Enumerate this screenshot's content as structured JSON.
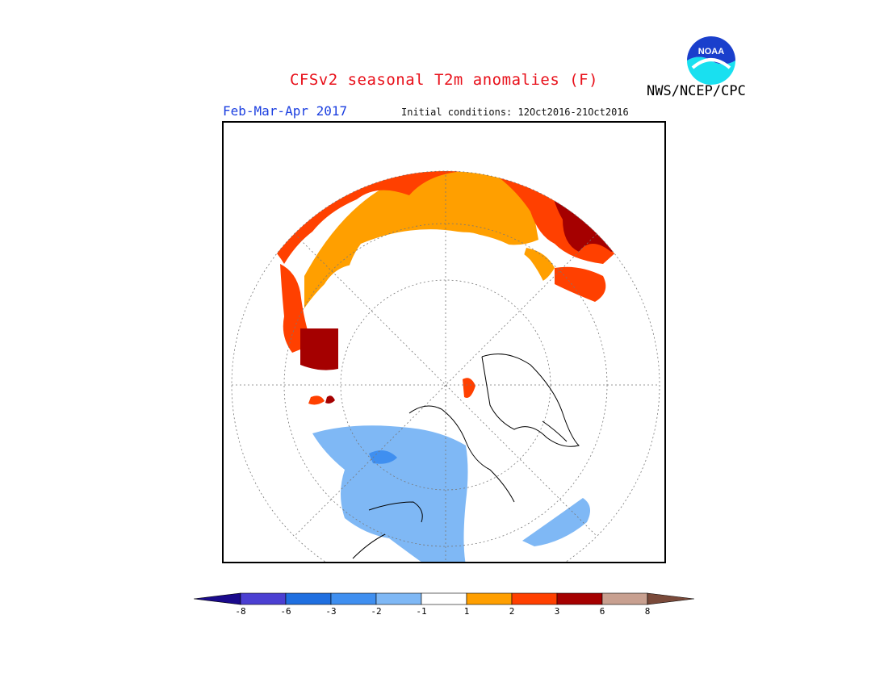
{
  "header": {
    "title": "CFSv2 seasonal T2m anomalies (F)",
    "period": "Feb-Mar-Apr 2017",
    "initial_conditions": "Initial conditions: 12Oct2016-21Oct2016",
    "agency": "NWS/NCEP/CPC",
    "logo_text": "NOAA"
  },
  "map": {
    "projection": "north-polar-stereographic",
    "variable": "T2m anomalies (F)"
  },
  "colorbar": {
    "tick_labels": [
      "-8",
      "-6",
      "-3",
      "-2",
      "-1",
      "1",
      "2",
      "3",
      "6",
      "8"
    ],
    "colors": [
      "#1a0a8c",
      "#4b3fd2",
      "#1f6fe0",
      "#3f8ff0",
      "#7fb8f5",
      "#ffffff",
      "#ff9f00",
      "#ff4000",
      "#a50000",
      "#c8a090",
      "#7a4a3a"
    ]
  }
}
